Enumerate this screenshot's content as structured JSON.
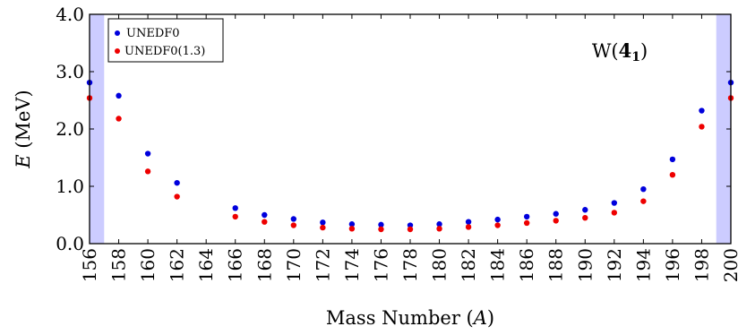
{
  "chart_data": {
    "type": "scatter",
    "title": "",
    "xlabel": "Mass Number (A)",
    "xlabel_prefix": "Mass Number (",
    "xlabel_var": "A",
    "xlabel_suffix": ")",
    "ylabel": "E (MeV)",
    "ylabel_var": "E",
    "ylabel_unit": " (MeV)",
    "xlim": [
      156,
      200
    ],
    "ylim": [
      0,
      4
    ],
    "xticks": [
      156,
      158,
      160,
      162,
      164,
      166,
      168,
      170,
      172,
      174,
      176,
      178,
      180,
      182,
      184,
      186,
      188,
      190,
      192,
      194,
      196,
      198,
      200
    ],
    "yticks": [
      "0.0",
      "1.0",
      "2.0",
      "3.0",
      "4.0"
    ],
    "grid": false,
    "legend_position": "top-left",
    "annotation": "W(4₁)",
    "annotation_base": "W(",
    "annotation_bold": "4",
    "annotation_sub": "1",
    "annotation_close": ")",
    "shaded_regions": [
      [
        156,
        157
      ],
      [
        199,
        200
      ]
    ],
    "shade_color": "#ccccff",
    "series": [
      {
        "name": "UNEDF0",
        "color": "#0000dd",
        "x": [
          156,
          158,
          160,
          162,
          166,
          168,
          170,
          172,
          174,
          176,
          178,
          180,
          182,
          184,
          186,
          188,
          190,
          192,
          194,
          196,
          198,
          200
        ],
        "y": [
          2.81,
          2.58,
          1.57,
          1.06,
          0.62,
          0.5,
          0.43,
          0.37,
          0.34,
          0.33,
          0.32,
          0.34,
          0.38,
          0.42,
          0.47,
          0.52,
          0.59,
          0.71,
          0.95,
          1.47,
          2.32,
          2.81
        ]
      },
      {
        "name": "UNEDF0(1.3)",
        "color": "#ee0000",
        "x": [
          156,
          158,
          160,
          162,
          166,
          168,
          170,
          172,
          174,
          176,
          178,
          180,
          182,
          184,
          186,
          188,
          190,
          192,
          194,
          196,
          198,
          200
        ],
        "y": [
          2.54,
          2.18,
          1.26,
          0.82,
          0.47,
          0.38,
          0.32,
          0.28,
          0.26,
          0.25,
          0.25,
          0.26,
          0.29,
          0.32,
          0.36,
          0.4,
          0.45,
          0.54,
          0.74,
          1.2,
          2.04,
          2.54
        ]
      }
    ]
  }
}
